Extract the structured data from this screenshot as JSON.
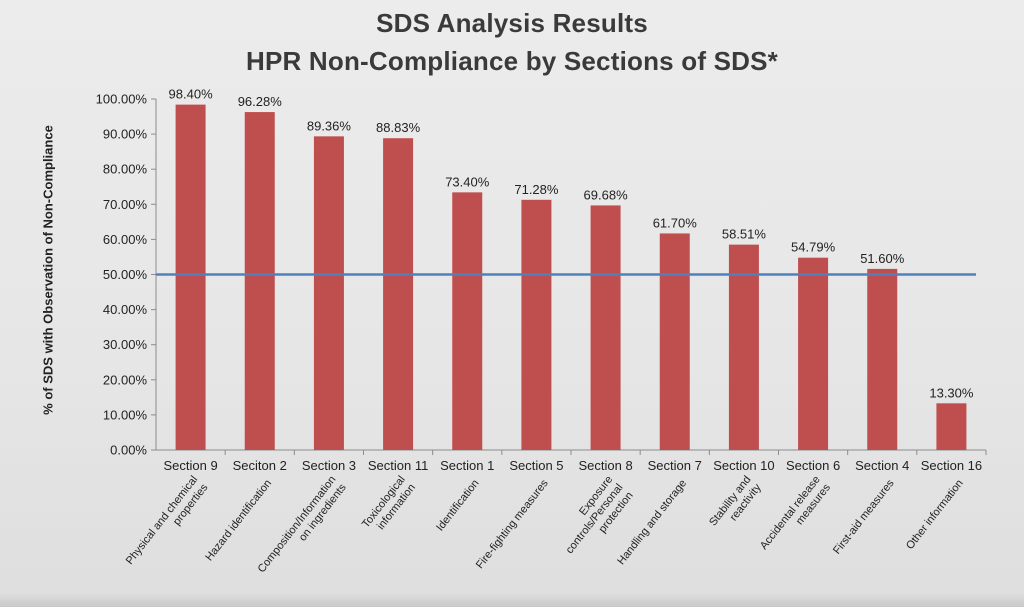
{
  "chart_data": {
    "type": "bar",
    "title": "SDS Analysis Results",
    "subtitle": "HPR Non-Compliance by Sections of SDS*",
    "ylabel": "% of SDS with Observation of Non-Compliance",
    "ylim": [
      0,
      100
    ],
    "yticks": [
      "0.00%",
      "10.00%",
      "20.00%",
      "30.00%",
      "40.00%",
      "50.00%",
      "60.00%",
      "70.00%",
      "80.00%",
      "90.00%",
      "100.00%"
    ],
    "categories": [
      "Section 9",
      "Seciton 2",
      "Section 3",
      "Section 11",
      "Section 1",
      "Section 5",
      "Section 8",
      "Section 7",
      "Section 10",
      "Section 6",
      "Section 4",
      "Section 16"
    ],
    "sublabels": [
      "Physical and chemical properties",
      "Hazard identification",
      "Composition/Information on ingredients",
      "Toxicological information",
      "Identification",
      "Fire-fighting measures",
      "Exposure controls/Personal protection",
      "Handling and storage",
      "Stability and reactivity",
      "Accidental release measures",
      "First-aid measures",
      "Other information"
    ],
    "values": [
      98.4,
      96.28,
      89.36,
      88.83,
      73.4,
      71.28,
      69.68,
      61.7,
      58.51,
      54.79,
      51.6,
      13.3
    ],
    "data_labels": [
      "98.40%",
      "96.28%",
      "89.36%",
      "88.83%",
      "73.40%",
      "71.28%",
      "69.68%",
      "61.70%",
      "58.51%",
      "54.79%",
      "51.60%",
      "13.30%"
    ],
    "reference_line": 50,
    "colors": {
      "bar": "#bf4f4f",
      "reference_line": "#4f81bd",
      "axis": "#8c8c8c"
    },
    "grid": false
  }
}
